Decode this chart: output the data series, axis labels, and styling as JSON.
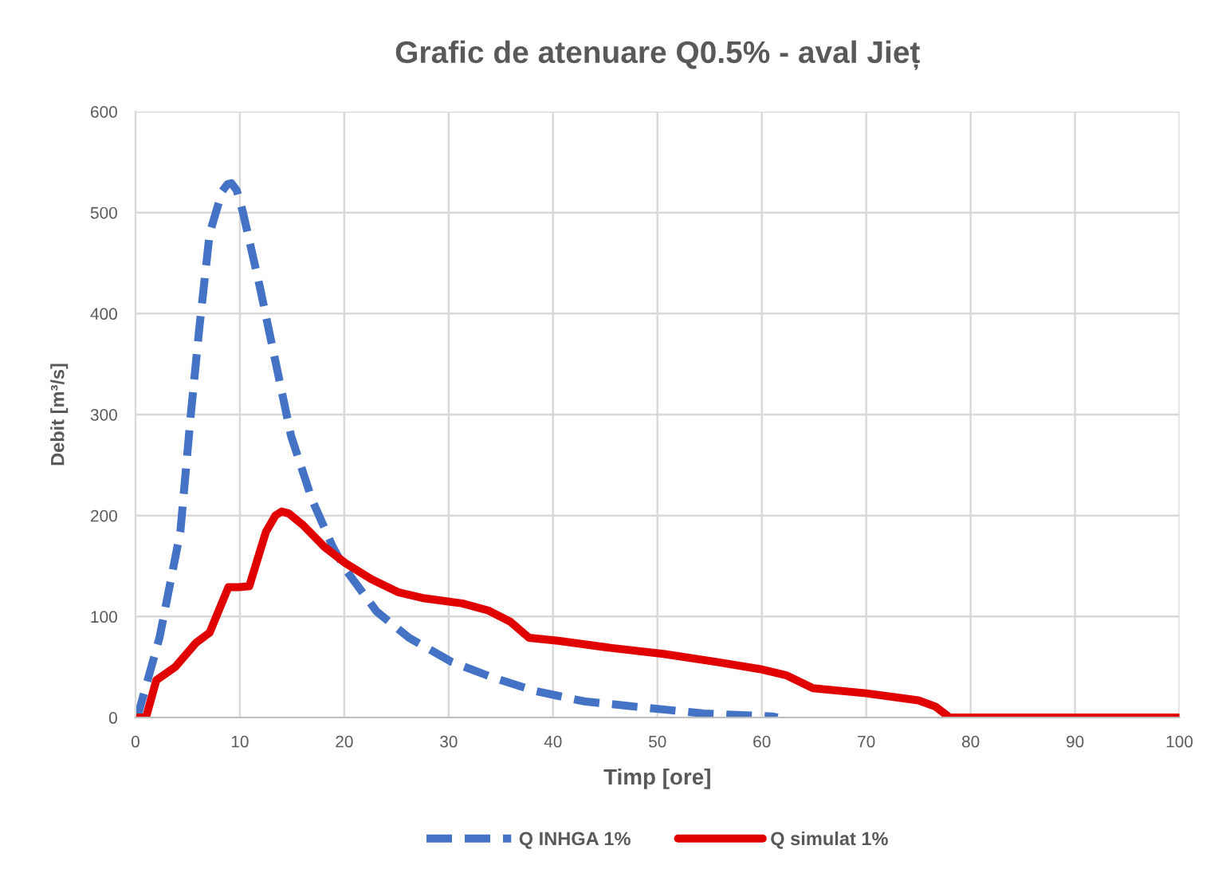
{
  "chart_data": {
    "type": "line",
    "title": "Grafic de atenuare Q0.5% - aval Jieț",
    "xlabel": "Timp [ore]",
    "ylabel": "Debit [m³/s]",
    "series": [
      {
        "name": "Q INHGA 1%",
        "color": "#4472c4",
        "line_style": "dashed",
        "x": [
          0,
          0.3,
          2.3,
          4.3,
          5.3,
          6.1,
          7.1,
          8.3,
          8.8,
          9.2,
          9.7,
          10.3,
          11.9,
          13.4,
          14.9,
          16.9,
          18.9,
          20.1,
          23.1,
          26.2,
          30.3,
          34.4,
          38.4,
          43,
          48.6,
          54.5,
          61.1,
          61.5
        ],
        "values": [
          0,
          5,
          79,
          184,
          300,
          384,
          479,
          521,
          528,
          529,
          522,
          500,
          427,
          353,
          279,
          216,
          169,
          147,
          105,
          79,
          55,
          39,
          26,
          16,
          10,
          4,
          1,
          0
        ]
      },
      {
        "name": "Q simulat 1%",
        "color": "#e00000",
        "line_style": "solid",
        "x": [
          0,
          1.0,
          2.0,
          3.8,
          5.8,
          7.1,
          8.9,
          9.9,
          10.9,
          12.5,
          13.4,
          14.0,
          14.7,
          16.0,
          18.1,
          20.1,
          22.6,
          25.2,
          27.7,
          31.3,
          33.8,
          35.9,
          37.7,
          40.5,
          45.5,
          50.6,
          55.7,
          59.8,
          62.3,
          64.9,
          70,
          75,
          76.6,
          78,
          100
        ],
        "values": [
          0,
          0,
          37,
          50,
          74,
          84,
          129,
          129,
          130,
          184,
          200,
          204,
          202,
          191,
          169,
          153,
          137,
          124,
          118,
          113,
          106,
          95,
          79,
          76,
          69,
          63,
          55,
          48,
          42,
          29,
          24,
          17,
          11,
          0,
          0
        ]
      }
    ],
    "xlim": [
      0,
      100
    ],
    "xticks": [
      0,
      10,
      20,
      30,
      40,
      50,
      60,
      70,
      80,
      90,
      100
    ],
    "ylim": [
      0,
      600
    ],
    "yticks": [
      0,
      100,
      200,
      300,
      400,
      500,
      600
    ],
    "grid": true,
    "legend": "bottom",
    "marker": "none"
  }
}
